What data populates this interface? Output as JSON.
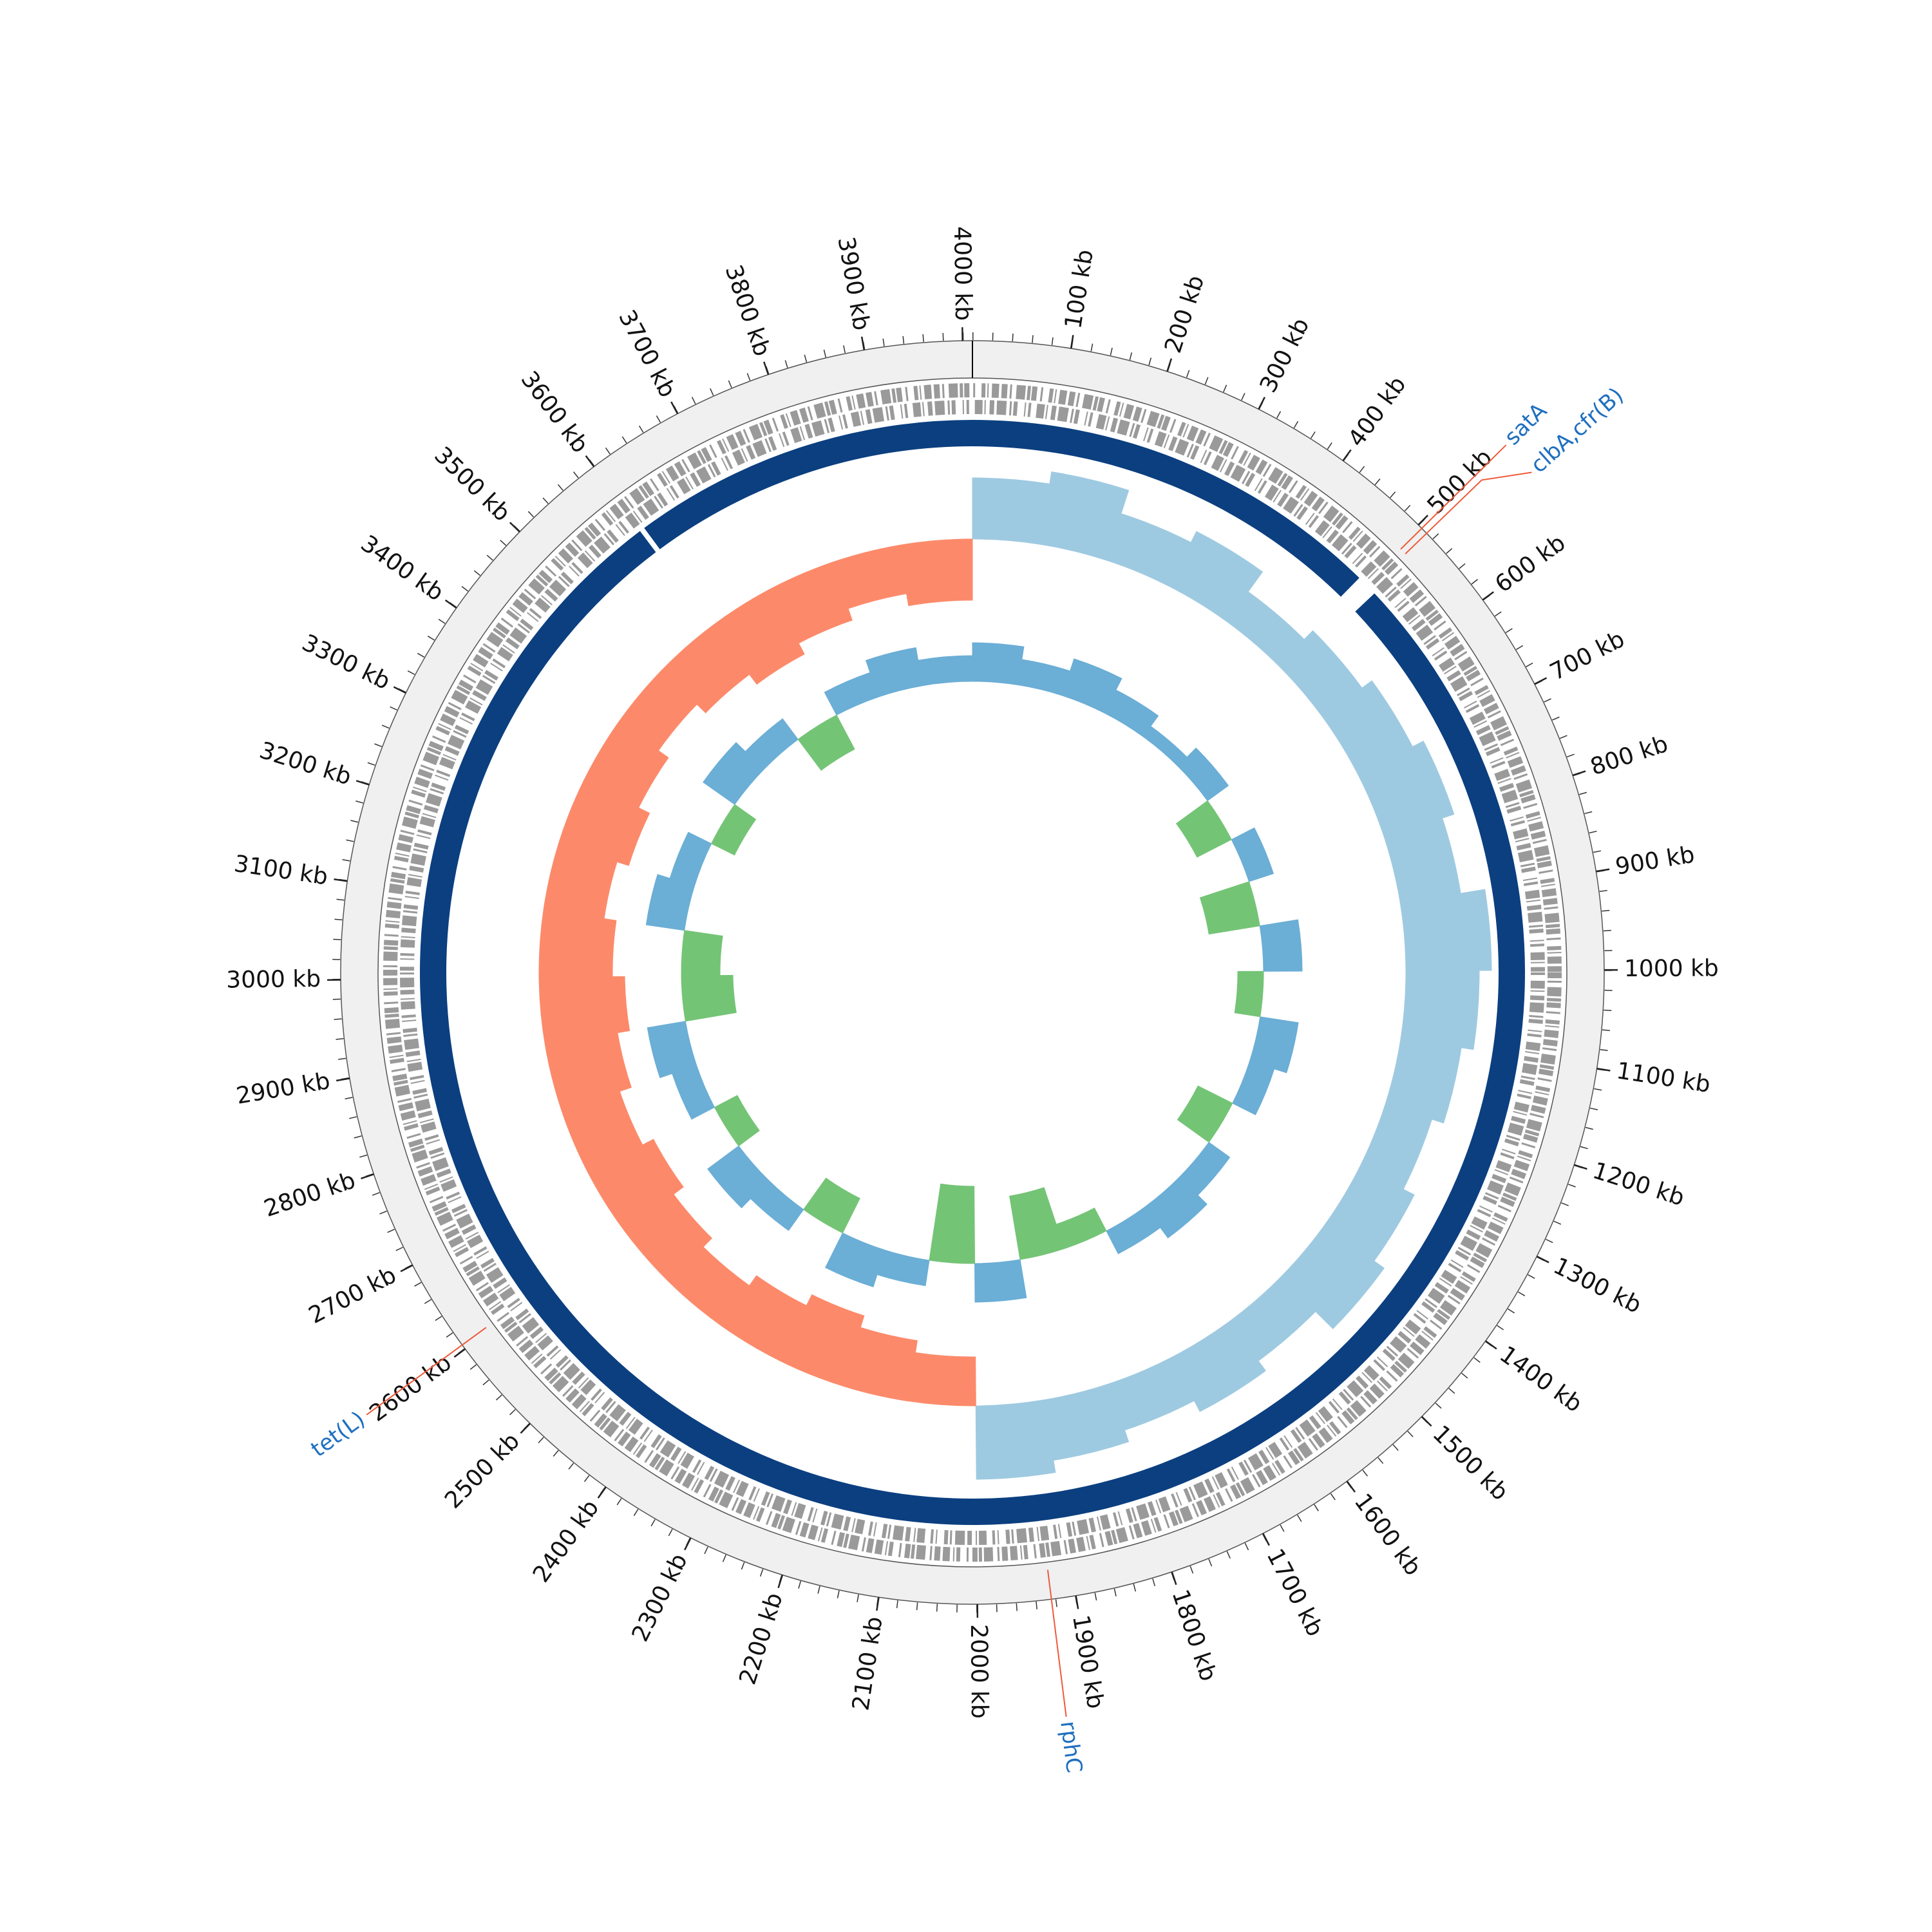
{
  "chart_data": {
    "type": "circular-genome",
    "xlim": [
      0,
      4010
    ],
    "xticks": [
      {
        "value": 100,
        "label": "100 kb"
      },
      {
        "value": 200,
        "label": "200 kb"
      },
      {
        "value": 300,
        "label": "300 kb"
      },
      {
        "value": 400,
        "label": "400 kb"
      },
      {
        "value": 500,
        "label": "500 kb"
      },
      {
        "value": 600,
        "label": "600 kb"
      },
      {
        "value": 700,
        "label": "700 kb"
      },
      {
        "value": 800,
        "label": "800 kb"
      },
      {
        "value": 900,
        "label": "900 kb"
      },
      {
        "value": 1000,
        "label": "1000 kb"
      },
      {
        "value": 1100,
        "label": "1100 kb"
      },
      {
        "value": 1200,
        "label": "1200 kb"
      },
      {
        "value": 1300,
        "label": "1300 kb"
      },
      {
        "value": 1400,
        "label": "1400 kb"
      },
      {
        "value": 1500,
        "label": "1500 kb"
      },
      {
        "value": 1600,
        "label": "1600 kb"
      },
      {
        "value": 1700,
        "label": "1700 kb"
      },
      {
        "value": 1800,
        "label": "1800 kb"
      },
      {
        "value": 1900,
        "label": "1900 kb"
      },
      {
        "value": 2000,
        "label": "2000 kb"
      },
      {
        "value": 2100,
        "label": "2100 kb"
      },
      {
        "value": 2200,
        "label": "2200 kb"
      },
      {
        "value": 2300,
        "label": "2300 kb"
      },
      {
        "value": 2400,
        "label": "2400 kb"
      },
      {
        "value": 2500,
        "label": "2500 kb"
      },
      {
        "value": 2600,
        "label": "2600 kb"
      },
      {
        "value": 2700,
        "label": "2700 kb"
      },
      {
        "value": 2800,
        "label": "2800 kb"
      },
      {
        "value": 2900,
        "label": "2900 kb"
      },
      {
        "value": 3000,
        "label": "3000 kb"
      },
      {
        "value": 3100,
        "label": "3100 kb"
      },
      {
        "value": 3200,
        "label": "3200 kb"
      },
      {
        "value": 3300,
        "label": "3300 kb"
      },
      {
        "value": 3400,
        "label": "3400 kb"
      },
      {
        "value": 3500,
        "label": "3500 kb"
      },
      {
        "value": 3600,
        "label": "3600 kb"
      },
      {
        "value": 3700,
        "label": "3700 kb"
      },
      {
        "value": 3800,
        "label": "3800 kb"
      },
      {
        "value": 3900,
        "label": "3900 kb"
      },
      {
        "value": 4000,
        "label": "4000 kb"
      }
    ],
    "backbone": {
      "color": "#0b3f80",
      "segments": [
        [
          0,
          495
        ],
        [
          520,
          3598
        ],
        [
          3604,
          4010
        ]
      ]
    },
    "annotations": [
      {
        "label": "satA",
        "position": 505
      },
      {
        "label": "clbA,cfr(B)",
        "position": 512
      },
      {
        "label": "rphC",
        "position": 1925
      },
      {
        "label": "tet(L)",
        "position": 2605
      }
    ],
    "annotation_color": "#1f6fbf",
    "leader_color": "#ef5a3a",
    "gc_skew": {
      "x": [
        0,
        100,
        200,
        300,
        400,
        500,
        600,
        700,
        800,
        900,
        1000,
        1100,
        1200,
        1300,
        1400,
        1500,
        1600,
        1700,
        1800,
        1900,
        2000,
        2100,
        2200,
        2300,
        2400,
        2500,
        2600,
        2700,
        2800,
        2900,
        3000,
        3100,
        3200,
        3300,
        3400,
        3500,
        3600,
        3700,
        3800,
        3900
      ],
      "values": [
        0.05,
        0.06,
        0.04,
        0.05,
        0.03,
        0.04,
        0.05,
        0.06,
        0.05,
        0.07,
        0.06,
        0.05,
        0.04,
        0.05,
        0.06,
        0.04,
        0.05,
        0.04,
        0.05,
        0.06,
        -0.04,
        -0.05,
        -0.06,
        -0.05,
        -0.04,
        -0.05,
        -0.06,
        -0.05,
        -0.06,
        -0.07,
        -0.06,
        -0.05,
        -0.06,
        -0.05,
        -0.04,
        -0.05,
        -0.06,
        -0.05,
        -0.04,
        -0.05
      ],
      "ylim": [
        -0.1,
        0.1
      ],
      "positive_color": "#9ecae1",
      "negative_color": "#fc8a6a"
    },
    "gc_content": {
      "x": [
        0,
        100,
        200,
        300,
        400,
        500,
        600,
        700,
        800,
        900,
        1000,
        1100,
        1200,
        1300,
        1400,
        1500,
        1600,
        1700,
        1800,
        1900,
        2000,
        2100,
        2200,
        2300,
        2400,
        2500,
        2600,
        2700,
        2800,
        2900,
        3000,
        3100,
        3200,
        3300,
        3400,
        3500,
        3600,
        3700,
        3800,
        3900
      ],
      "values": [
        0.03,
        0.02,
        0.03,
        0.02,
        0.01,
        0.02,
        -0.03,
        0.02,
        -0.04,
        0.03,
        -0.02,
        0.03,
        0.02,
        -0.03,
        0.02,
        0.03,
        0.02,
        -0.02,
        -0.05,
        0.03,
        -0.06,
        0.02,
        0.03,
        -0.03,
        0.02,
        0.03,
        -0.02,
        0.02,
        0.03,
        -0.04,
        -0.03,
        0.03,
        0.02,
        -0.02,
        0.03,
        0.02,
        -0.03,
        0.02,
        0.03,
        0.02
      ],
      "ylim": [
        -0.1,
        0.1
      ],
      "positive_color": "#6baed6",
      "negative_color": "#74c476"
    }
  }
}
